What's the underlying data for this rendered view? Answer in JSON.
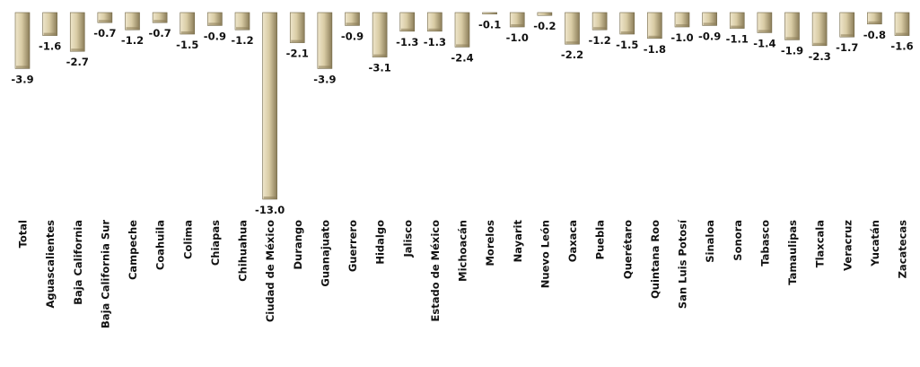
{
  "chart_data": {
    "type": "bar",
    "title": "",
    "xlabel": "",
    "ylabel": "",
    "categories": [
      "Total",
      "Aguascalientes",
      "Baja California",
      "Baja California Sur",
      "Campeche",
      "Coahuila",
      "Colima",
      "Chiapas",
      "Chihuahua",
      "Ciudad de México",
      "Durango",
      "Guanajuato",
      "Guerrero",
      "Hidalgo",
      "Jalisco",
      "Estado de México",
      "Michoacán",
      "Morelos",
      "Nayarit",
      "Nuevo León",
      "Oaxaca",
      "Puebla",
      "Querétaro",
      "Quintana Roo",
      "San Luis Potosí",
      "Sinaloa",
      "Sonora",
      "Tabasco",
      "Tamaulipas",
      "Tlaxcala",
      "Veracruz",
      "Yucatán",
      "Zacatecas"
    ],
    "values": [
      -3.9,
      -1.6,
      -2.7,
      -0.7,
      -1.2,
      -0.7,
      -1.5,
      -0.9,
      -1.2,
      -13.0,
      -2.1,
      -3.9,
      -0.9,
      -3.1,
      -1.3,
      -1.3,
      -2.4,
      -0.1,
      -1.0,
      -0.2,
      -2.2,
      -1.2,
      -1.5,
      -1.8,
      -1.0,
      -0.9,
      -1.1,
      -1.4,
      -1.9,
      -2.3,
      -1.7,
      -0.8,
      -1.6
    ],
    "value_labels": [
      "-3.9",
      "-1.6",
      "-2.7",
      "-0.7",
      "-1.2",
      "-0.7",
      "-1.5",
      "-0.9",
      "-1.2",
      "-13.0",
      "-2.1",
      "-3.9",
      "-0.9",
      "-3.1",
      "-1.3",
      "-1.3",
      "-2.4",
      "-0.1",
      "-1.0",
      "-0.2",
      "-2.2",
      "-1.2",
      "-1.5",
      "-1.8",
      "-1.0",
      "-0.9",
      "-1.1",
      "-1.4",
      "-1.9",
      "-2.3",
      "-1.7",
      "-0.8",
      "-1.6"
    ],
    "ylim": [
      -13.0,
      0
    ],
    "grid": false,
    "legend": "none",
    "colors": {
      "bar_light": "#f3ecd6",
      "bar_mid": "#d8cba4",
      "bar_dark": "#8a7c58",
      "bar_stroke": "#6f6444",
      "text": "#111111"
    }
  }
}
